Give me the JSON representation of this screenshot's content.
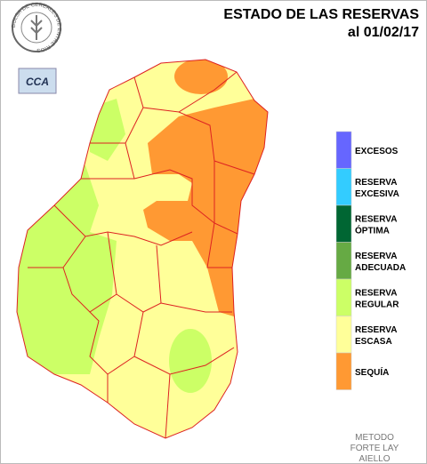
{
  "header": {
    "title": "ESTADO DE LAS RESERVAS",
    "date": "al 01/02/17"
  },
  "logos": {
    "bolsa": "BOLSA DE CEREALES DE ENTRE RIOS",
    "cca": "CCA"
  },
  "legend": [
    {
      "lines": [
        "EXCESOS"
      ],
      "color": "#6666ff"
    },
    {
      "lines": [
        "RESERVA",
        "EXCESIVA"
      ],
      "color": "#33ccff"
    },
    {
      "lines": [
        "RESERVA",
        "ÓPTIMA"
      ],
      "color": "#006633"
    },
    {
      "lines": [
        "RESERVA",
        "ADECUADA"
      ],
      "color": "#66aa44"
    },
    {
      "lines": [
        "RESERVA",
        "REGULAR"
      ],
      "color": "#ccff66"
    },
    {
      "lines": [
        "RESERVA",
        "ESCASA"
      ],
      "color": "#ffff99"
    },
    {
      "lines": [
        "SEQUÍA"
      ],
      "color": "#ff9933"
    }
  ],
  "method": [
    "METODO",
    "FORTE LAY",
    "AIELLO"
  ]
}
